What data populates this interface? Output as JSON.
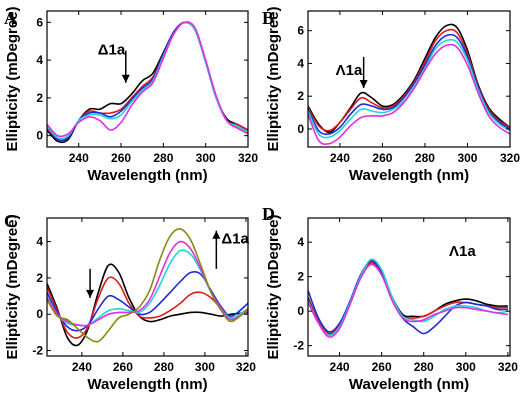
{
  "colors": {
    "black": "#000000",
    "red": "#dd1c1c",
    "blue": "#1f2bd6",
    "cyan": "#1fd6d6",
    "magenta": "#e22ee2",
    "olive": "#8a8a10"
  },
  "chart_data": [
    {
      "type": "line",
      "panel": "A",
      "xlabel": "Wavelength (nm)",
      "ylabel": "Ellipticity (mDegree)",
      "xlim": [
        225,
        320
      ],
      "ylim": [
        -0.6,
        6.6
      ],
      "xticks": [
        240,
        260,
        280,
        300,
        320
      ],
      "yticks": [
        0,
        2,
        4,
        6
      ],
      "annotation": {
        "text": "Δ1a",
        "x": 249,
        "y": 4.3,
        "arrow": "down",
        "arrow_from": 4.5,
        "arrow_to": 2.8
      },
      "x": [
        225,
        230,
        235,
        240,
        245,
        250,
        255,
        260,
        265,
        270,
        275,
        280,
        285,
        290,
        295,
        300,
        305,
        310,
        315,
        320
      ],
      "series": [
        {
          "color": "black",
          "values": [
            0.3,
            -0.3,
            -0.2,
            0.8,
            1.4,
            1.4,
            1.7,
            1.7,
            2.2,
            2.9,
            3.3,
            4.4,
            5.5,
            6.0,
            5.6,
            3.9,
            2.0,
            0.9,
            0.6,
            0.3
          ]
        },
        {
          "color": "red",
          "values": [
            0.4,
            -0.2,
            -0.1,
            0.8,
            1.3,
            1.2,
            1.2,
            1.4,
            2.0,
            2.6,
            3.1,
            4.3,
            5.5,
            6.0,
            5.6,
            3.9,
            2.0,
            0.8,
            0.6,
            0.3
          ]
        },
        {
          "color": "blue",
          "values": [
            0.5,
            -0.2,
            -0.1,
            0.8,
            1.2,
            1.2,
            1.0,
            1.3,
            1.9,
            2.5,
            3.0,
            4.3,
            5.5,
            6.0,
            5.6,
            3.9,
            2.0,
            0.8,
            0.5,
            0.2
          ]
        },
        {
          "color": "cyan",
          "values": [
            0.5,
            -0.1,
            0.0,
            0.8,
            1.1,
            1.1,
            0.9,
            1.1,
            1.8,
            2.4,
            2.9,
            4.2,
            5.4,
            6.0,
            5.6,
            3.9,
            2.0,
            0.8,
            0.5,
            0.2
          ]
        },
        {
          "color": "magenta",
          "values": [
            0.6,
            0.0,
            0.1,
            0.7,
            1.0,
            0.8,
            0.3,
            0.7,
            1.6,
            2.3,
            2.8,
            4.1,
            5.4,
            6.0,
            5.7,
            4.0,
            2.1,
            0.8,
            0.4,
            0.1
          ]
        }
      ]
    },
    {
      "type": "line",
      "panel": "B",
      "xlabel": "Wavelength (nm)",
      "ylabel": "Ellipticity (mDegree)",
      "xlim": [
        225,
        320
      ],
      "ylim": [
        -1.1,
        7.2
      ],
      "xticks": [
        240,
        260,
        280,
        300,
        320
      ],
      "yticks": [
        0,
        2,
        4,
        6
      ],
      "annotation": {
        "text": "Λ1a",
        "x": 238,
        "y": 3.3,
        "arrow": "down",
        "arrow_from": 4.4,
        "arrow_to": 2.5
      },
      "x": [
        225,
        230,
        235,
        240,
        245,
        250,
        255,
        260,
        265,
        270,
        275,
        280,
        285,
        290,
        295,
        300,
        305,
        310,
        315,
        320
      ],
      "series": [
        {
          "color": "black",
          "values": [
            1.4,
            0.3,
            -0.2,
            0.4,
            1.3,
            2.2,
            1.9,
            1.4,
            1.5,
            2.1,
            3.0,
            4.3,
            5.6,
            6.3,
            6.2,
            4.8,
            2.7,
            1.3,
            0.6,
            0.1
          ]
        },
        {
          "color": "red",
          "values": [
            1.3,
            0.2,
            -0.1,
            0.4,
            1.2,
            1.9,
            1.6,
            1.3,
            1.4,
            2.0,
            2.9,
            4.1,
            5.4,
            6.0,
            5.9,
            4.6,
            2.6,
            1.2,
            0.5,
            0.1
          ]
        },
        {
          "color": "blue",
          "values": [
            1.2,
            -0.1,
            -0.3,
            0.1,
            0.9,
            1.5,
            1.4,
            1.2,
            1.3,
            1.9,
            2.8,
            3.9,
            5.1,
            5.7,
            5.6,
            4.4,
            2.5,
            1.1,
            0.4,
            0.0
          ]
        },
        {
          "color": "cyan",
          "values": [
            1.1,
            -0.3,
            -0.5,
            -0.1,
            0.6,
            1.2,
            1.1,
            1.0,
            1.2,
            1.7,
            2.6,
            3.7,
            4.9,
            5.4,
            5.3,
            4.2,
            2.4,
            1.0,
            0.3,
            -0.1
          ]
        },
        {
          "color": "magenta",
          "values": [
            0.9,
            -0.7,
            -0.9,
            -0.5,
            0.2,
            0.7,
            0.8,
            0.8,
            1.0,
            1.6,
            2.5,
            3.6,
            4.6,
            5.1,
            5.0,
            3.9,
            2.2,
            0.8,
            0.1,
            -0.3
          ]
        }
      ]
    },
    {
      "type": "line",
      "panel": "C",
      "xlabel": "Wavelength (nm)",
      "ylabel": "Ellipticity (mDegree)",
      "xlim": [
        223,
        321
      ],
      "ylim": [
        -2.3,
        5.3
      ],
      "xticks": [
        240,
        260,
        280,
        300,
        320
      ],
      "yticks": [
        -2,
        0,
        2,
        4
      ],
      "annotation": {
        "text": "Δ1a",
        "x": 308,
        "y": 3.9,
        "arrow": "up",
        "arrow_from": 2.5,
        "arrow_to": 4.6
      },
      "annotation2": {
        "arrow": "down",
        "x": 244,
        "arrow_from": 2.5,
        "arrow_to": 0.9
      },
      "x": [
        223,
        228,
        233,
        238,
        243,
        248,
        253,
        258,
        263,
        268,
        273,
        278,
        283,
        288,
        293,
        298,
        303,
        308,
        313,
        321
      ],
      "series": [
        {
          "color": "black",
          "values": [
            1.7,
            0.3,
            -1.3,
            -1.7,
            -0.8,
            1.2,
            2.7,
            2.3,
            0.9,
            -0.1,
            -0.4,
            -0.3,
            -0.1,
            0.0,
            0.1,
            0.1,
            0.0,
            -0.1,
            0.0,
            0.1
          ]
        },
        {
          "color": "red",
          "values": [
            1.5,
            0.2,
            -1.0,
            -1.3,
            -0.7,
            0.9,
            2.0,
            1.7,
            0.6,
            -0.1,
            -0.2,
            -0.1,
            0.2,
            0.6,
            1.1,
            1.2,
            0.9,
            0.3,
            -0.2,
            0.3
          ]
        },
        {
          "color": "blue",
          "values": [
            1.2,
            0.1,
            -0.7,
            -0.9,
            -0.6,
            0.3,
            1.0,
            0.8,
            0.4,
            0.0,
            0.1,
            0.6,
            1.2,
            1.8,
            2.3,
            2.2,
            1.3,
            0.4,
            -0.1,
            0.6
          ]
        },
        {
          "color": "cyan",
          "values": [
            1.0,
            0.0,
            -0.5,
            -0.6,
            -0.6,
            -0.2,
            0.2,
            0.3,
            0.2,
            0.1,
            0.6,
            1.6,
            2.8,
            3.5,
            3.3,
            2.4,
            1.2,
            0.3,
            -0.2,
            0.3
          ]
        },
        {
          "color": "magenta",
          "values": [
            0.9,
            0.0,
            -0.4,
            -0.6,
            -0.6,
            -0.3,
            0.0,
            0.1,
            0.1,
            0.2,
            0.8,
            2.1,
            3.4,
            4.0,
            3.6,
            2.5,
            1.2,
            0.3,
            -0.3,
            0.2
          ]
        },
        {
          "color": "olive",
          "values": [
            0.8,
            -0.1,
            -0.3,
            -0.8,
            -1.3,
            -1.5,
            -0.9,
            -0.2,
            0.0,
            0.4,
            1.3,
            3.0,
            4.3,
            4.7,
            4.1,
            2.7,
            1.2,
            0.2,
            -0.4,
            0.3
          ]
        }
      ]
    },
    {
      "type": "line",
      "panel": "D",
      "xlabel": "Wavelength (nm)",
      "ylabel": "Ellipticity (mDegree)",
      "xlim": [
        225,
        321
      ],
      "ylim": [
        -2.6,
        5.4
      ],
      "xticks": [
        240,
        260,
        280,
        300,
        320
      ],
      "yticks": [
        -2,
        0,
        2,
        4
      ],
      "annotation": {
        "text": "Λ1a",
        "x": 292,
        "y": 3.2
      },
      "x": [
        225,
        230,
        235,
        240,
        245,
        250,
        255,
        260,
        265,
        270,
        275,
        280,
        285,
        290,
        295,
        300,
        305,
        310,
        315,
        320
      ],
      "series": [
        {
          "color": "black",
          "values": [
            0.8,
            -0.6,
            -1.3,
            -0.8,
            0.5,
            2.0,
            2.9,
            2.3,
            0.8,
            -0.2,
            -0.3,
            -0.3,
            0.0,
            0.4,
            0.6,
            0.7,
            0.6,
            0.4,
            0.3,
            0.3
          ]
        },
        {
          "color": "red",
          "values": [
            0.7,
            -0.6,
            -1.3,
            -0.8,
            0.5,
            2.0,
            2.8,
            2.2,
            0.7,
            -0.3,
            -0.4,
            -0.3,
            0.0,
            0.3,
            0.5,
            0.5,
            0.4,
            0.3,
            0.2,
            0.2
          ]
        },
        {
          "color": "blue",
          "values": [
            1.2,
            -0.4,
            -1.2,
            -0.7,
            0.6,
            2.1,
            2.9,
            2.3,
            0.8,
            -0.4,
            -0.9,
            -1.3,
            -0.9,
            -0.3,
            0.3,
            0.5,
            0.4,
            0.3,
            0.1,
            0.1
          ]
        },
        {
          "color": "cyan",
          "values": [
            0.6,
            -0.7,
            -1.4,
            -0.9,
            0.5,
            2.0,
            3.0,
            2.4,
            0.8,
            -0.3,
            -0.5,
            -0.6,
            -0.3,
            0.1,
            0.3,
            0.3,
            0.2,
            0.0,
            -0.1,
            0.0
          ]
        },
        {
          "color": "magenta",
          "values": [
            0.5,
            -0.7,
            -1.5,
            -1.0,
            0.4,
            1.9,
            2.7,
            2.1,
            0.6,
            -0.4,
            -0.6,
            -0.5,
            -0.2,
            0.0,
            0.2,
            0.2,
            0.1,
            0.0,
            -0.1,
            -0.2
          ]
        }
      ]
    }
  ]
}
